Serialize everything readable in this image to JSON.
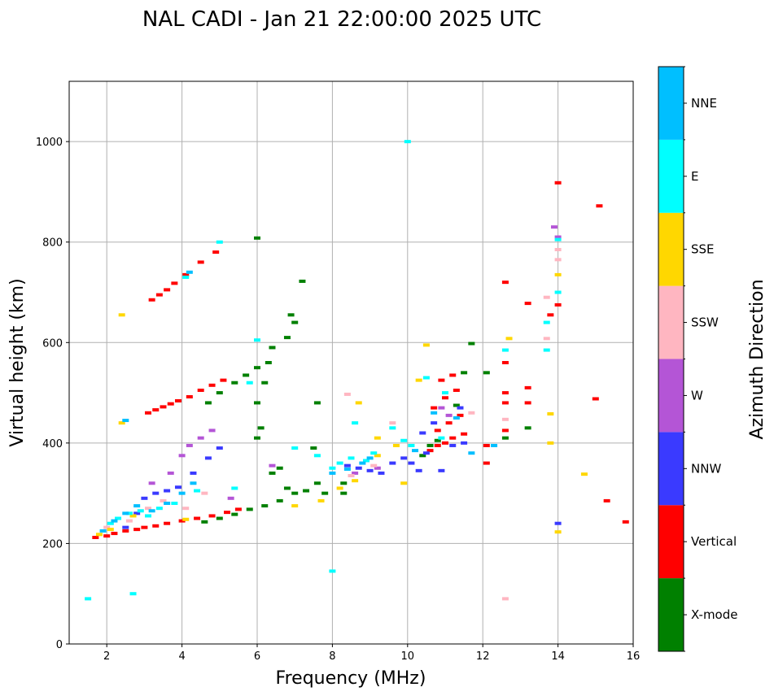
{
  "chart_data": {
    "type": "scatter",
    "title": "NAL CADI - Jan 21 22:00:00 2025 UTC",
    "xlabel": "Frequency (MHz)",
    "ylabel": "Virtual height (km)",
    "xlim": [
      1,
      16
    ],
    "ylim": [
      0,
      1120
    ],
    "xticks": [
      2,
      4,
      6,
      8,
      10,
      12,
      14,
      16
    ],
    "yticks": [
      0,
      200,
      400,
      600,
      800,
      1000
    ],
    "grid": true,
    "colorbar": {
      "label": "Azimuth Direction",
      "categories": [
        {
          "name": "X-mode",
          "color": "#008000"
        },
        {
          "name": "Vertical",
          "color": "#ff0000"
        },
        {
          "name": "NNW",
          "color": "#3a3aff"
        },
        {
          "name": "W",
          "color": "#b455d6"
        },
        {
          "name": "SSW",
          "color": "#ffb6c1"
        },
        {
          "name": "SSE",
          "color": "#ffd700"
        },
        {
          "name": "E",
          "color": "#00ffff"
        },
        {
          "name": "NNE",
          "color": "#00bfff"
        }
      ]
    },
    "series": [
      {
        "name": "Vertical",
        "points": [
          [
            1.7,
            212
          ],
          [
            2.0,
            215
          ],
          [
            2.2,
            220
          ],
          [
            2.5,
            225
          ],
          [
            2.8,
            228
          ],
          [
            3.0,
            232
          ],
          [
            3.3,
            235
          ],
          [
            3.6,
            240
          ],
          [
            4.0,
            245
          ],
          [
            4.4,
            250
          ],
          [
            4.8,
            255
          ],
          [
            5.2,
            262
          ],
          [
            5.5,
            268
          ],
          [
            3.1,
            460
          ],
          [
            3.3,
            466
          ],
          [
            3.5,
            472
          ],
          [
            3.7,
            478
          ],
          [
            3.9,
            484
          ],
          [
            4.2,
            492
          ],
          [
            4.5,
            505
          ],
          [
            4.8,
            515
          ],
          [
            5.1,
            525
          ],
          [
            3.2,
            685
          ],
          [
            3.4,
            695
          ],
          [
            3.6,
            705
          ],
          [
            3.8,
            718
          ],
          [
            4.1,
            735
          ],
          [
            4.5,
            760
          ],
          [
            4.9,
            780
          ],
          [
            10.6,
            385
          ],
          [
            10.8,
            395
          ],
          [
            11.0,
            400
          ],
          [
            11.2,
            410
          ],
          [
            11.5,
            418
          ],
          [
            10.8,
            425
          ],
          [
            11.1,
            440
          ],
          [
            11.4,
            455
          ],
          [
            10.7,
            470
          ],
          [
            11.0,
            490
          ],
          [
            11.3,
            505
          ],
          [
            10.9,
            525
          ],
          [
            11.2,
            535
          ],
          [
            12.1,
            360
          ],
          [
            12.1,
            395
          ],
          [
            12.6,
            425
          ],
          [
            12.6,
            480
          ],
          [
            12.6,
            500
          ],
          [
            13.2,
            480
          ],
          [
            13.2,
            510
          ],
          [
            12.6,
            560
          ],
          [
            12.6,
            720
          ],
          [
            13.2,
            678
          ],
          [
            13.8,
            655
          ],
          [
            14.0,
            918
          ],
          [
            14.0,
            675
          ],
          [
            15.0,
            488
          ],
          [
            15.1,
            872
          ],
          [
            15.3,
            285
          ],
          [
            15.8,
            243
          ]
        ]
      },
      {
        "name": "X-mode",
        "points": [
          [
            4.6,
            243
          ],
          [
            5.0,
            250
          ],
          [
            5.4,
            258
          ],
          [
            5.8,
            268
          ],
          [
            6.2,
            275
          ],
          [
            6.6,
            285
          ],
          [
            7.0,
            300
          ],
          [
            7.3,
            305
          ],
          [
            7.6,
            320
          ],
          [
            7.8,
            300
          ],
          [
            8.3,
            300
          ],
          [
            8.3,
            320
          ],
          [
            4.7,
            480
          ],
          [
            5.0,
            500
          ],
          [
            5.4,
            520
          ],
          [
            5.7,
            535
          ],
          [
            6.0,
            480
          ],
          [
            6.0,
            550
          ],
          [
            6.4,
            590
          ],
          [
            6.8,
            610
          ],
          [
            7.0,
            640
          ],
          [
            6.9,
            655
          ],
          [
            6.3,
            560
          ],
          [
            6.2,
            520
          ],
          [
            6.1,
            430
          ],
          [
            6.0,
            410
          ],
          [
            6.4,
            340
          ],
          [
            6.6,
            350
          ],
          [
            6.8,
            310
          ],
          [
            6.0,
            808
          ],
          [
            7.2,
            722
          ],
          [
            7.6,
            480
          ],
          [
            7.5,
            390
          ],
          [
            10.4,
            375
          ],
          [
            10.6,
            395
          ],
          [
            10.8,
            405
          ],
          [
            11.3,
            475
          ],
          [
            11.5,
            540
          ],
          [
            11.7,
            598
          ],
          [
            12.1,
            540
          ],
          [
            12.6,
            410
          ],
          [
            13.2,
            430
          ]
        ]
      },
      {
        "name": "NNW",
        "points": [
          [
            2.5,
            232
          ],
          [
            2.8,
            260
          ],
          [
            3.0,
            290
          ],
          [
            3.3,
            300
          ],
          [
            3.6,
            305
          ],
          [
            3.9,
            312
          ],
          [
            4.3,
            340
          ],
          [
            4.7,
            370
          ],
          [
            5.0,
            390
          ],
          [
            8.4,
            355
          ],
          [
            8.7,
            350
          ],
          [
            9.0,
            345
          ],
          [
            9.3,
            340
          ],
          [
            9.6,
            360
          ],
          [
            9.9,
            370
          ],
          [
            10.1,
            360
          ],
          [
            10.3,
            345
          ],
          [
            10.5,
            380
          ],
          [
            10.4,
            420
          ],
          [
            10.7,
            440
          ],
          [
            10.9,
            345
          ],
          [
            11.2,
            395
          ],
          [
            11.5,
            400
          ],
          [
            11.4,
            470
          ],
          [
            14.0,
            240
          ]
        ]
      },
      {
        "name": "W",
        "points": [
          [
            3.2,
            320
          ],
          [
            3.7,
            340
          ],
          [
            4.0,
            375
          ],
          [
            4.2,
            395
          ],
          [
            4.5,
            410
          ],
          [
            4.8,
            425
          ],
          [
            5.3,
            290
          ],
          [
            6.4,
            355
          ],
          [
            8.6,
            340
          ],
          [
            9.2,
            350
          ],
          [
            10.9,
            470
          ],
          [
            11.1,
            455
          ],
          [
            13.9,
            830
          ],
          [
            14.0,
            810
          ]
        ]
      },
      {
        "name": "SSW",
        "points": [
          [
            2.0,
            232
          ],
          [
            2.6,
            245
          ],
          [
            3.1,
            270
          ],
          [
            3.5,
            285
          ],
          [
            4.1,
            270
          ],
          [
            4.6,
            300
          ],
          [
            8.4,
            497
          ],
          [
            8.5,
            335
          ],
          [
            9.1,
            355
          ],
          [
            9.6,
            440
          ],
          [
            11.7,
            460
          ],
          [
            12.6,
            90
          ],
          [
            12.6,
            447
          ],
          [
            13.7,
            690
          ],
          [
            13.7,
            608
          ],
          [
            14.0,
            765
          ],
          [
            14.0,
            785
          ]
        ]
      },
      {
        "name": "SSE",
        "points": [
          [
            1.8,
            218
          ],
          [
            2.1,
            228
          ],
          [
            2.4,
            440
          ],
          [
            2.4,
            655
          ],
          [
            2.7,
            255
          ],
          [
            4.1,
            248
          ],
          [
            7.0,
            275
          ],
          [
            7.7,
            285
          ],
          [
            8.2,
            310
          ],
          [
            8.6,
            325
          ],
          [
            8.7,
            480
          ],
          [
            9.2,
            375
          ],
          [
            9.2,
            410
          ],
          [
            9.7,
            395
          ],
          [
            9.9,
            320
          ],
          [
            10.3,
            525
          ],
          [
            10.5,
            595
          ],
          [
            12.7,
            608
          ],
          [
            13.8,
            400
          ],
          [
            13.8,
            458
          ],
          [
            14.0,
            735
          ],
          [
            14.7,
            338
          ],
          [
            14.0,
            223
          ]
        ]
      },
      {
        "name": "E",
        "points": [
          [
            2.1,
            240
          ],
          [
            2.3,
            250
          ],
          [
            2.6,
            260
          ],
          [
            2.9,
            265
          ],
          [
            3.1,
            255
          ],
          [
            3.4,
            270
          ],
          [
            3.8,
            280
          ],
          [
            4.1,
            730
          ],
          [
            4.4,
            305
          ],
          [
            5.0,
            800
          ],
          [
            5.4,
            310
          ],
          [
            5.8,
            520
          ],
          [
            6.0,
            605
          ],
          [
            7.0,
            390
          ],
          [
            7.6,
            375
          ],
          [
            8.0,
            350
          ],
          [
            8.0,
            145
          ],
          [
            8.2,
            360
          ],
          [
            8.5,
            370
          ],
          [
            8.6,
            440
          ],
          [
            8.9,
            365
          ],
          [
            9.1,
            380
          ],
          [
            9.6,
            430
          ],
          [
            9.9,
            405
          ],
          [
            10.0,
            1000
          ],
          [
            10.1,
            395
          ],
          [
            10.5,
            530
          ],
          [
            10.9,
            410
          ],
          [
            11.0,
            500
          ],
          [
            12.6,
            585
          ],
          [
            13.7,
            585
          ],
          [
            13.7,
            640
          ],
          [
            14.0,
            700
          ],
          [
            14.0,
            805
          ],
          [
            1.5,
            90
          ],
          [
            2.7,
            100
          ]
        ]
      },
      {
        "name": "NNE",
        "points": [
          [
            1.9,
            225
          ],
          [
            2.2,
            245
          ],
          [
            2.5,
            260
          ],
          [
            2.8,
            275
          ],
          [
            3.2,
            265
          ],
          [
            3.6,
            280
          ],
          [
            4.0,
            300
          ],
          [
            4.3,
            320
          ],
          [
            8.0,
            340
          ],
          [
            8.4,
            348
          ],
          [
            8.8,
            360
          ],
          [
            9.0,
            370
          ],
          [
            10.2,
            385
          ],
          [
            10.7,
            460
          ],
          [
            11.3,
            450
          ],
          [
            11.7,
            380
          ],
          [
            12.3,
            395
          ],
          [
            4.2,
            740
          ],
          [
            2.5,
            445
          ]
        ]
      }
    ]
  }
}
